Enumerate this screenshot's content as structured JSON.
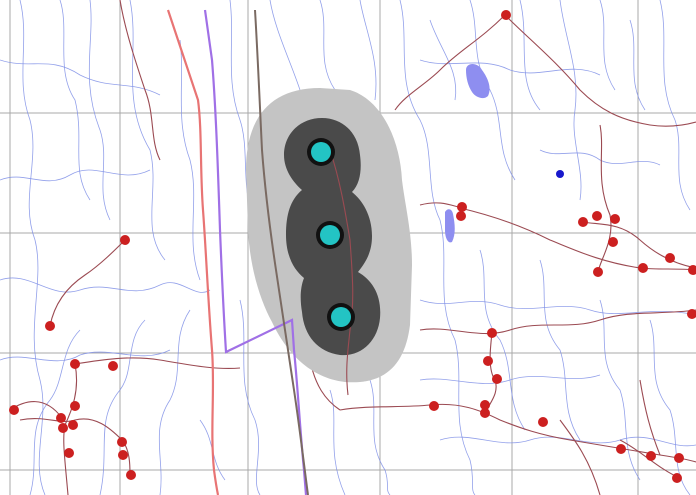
{
  "map": {
    "colors": {
      "background": "#ffffff",
      "grid": "#a8a8a8",
      "streams": "#7f8fe6",
      "roads": "#9b4a52",
      "boundary_red": "#e87474",
      "boundary_purple": "#a070e6",
      "railway": "#7a6a62",
      "buffer_outer": "#c4c4c4",
      "buffer_inner": "#4a4a4a",
      "wells": "#23c4c4",
      "red_points": "#cc2020",
      "water_bodies": "#8e8ef0"
    },
    "layers": [
      "grid",
      "streams",
      "roads",
      "boundaries",
      "railway",
      "buffer-zone",
      "red-points",
      "water-bodies",
      "wells"
    ],
    "well_count": 3,
    "red_point_count": 40
  }
}
